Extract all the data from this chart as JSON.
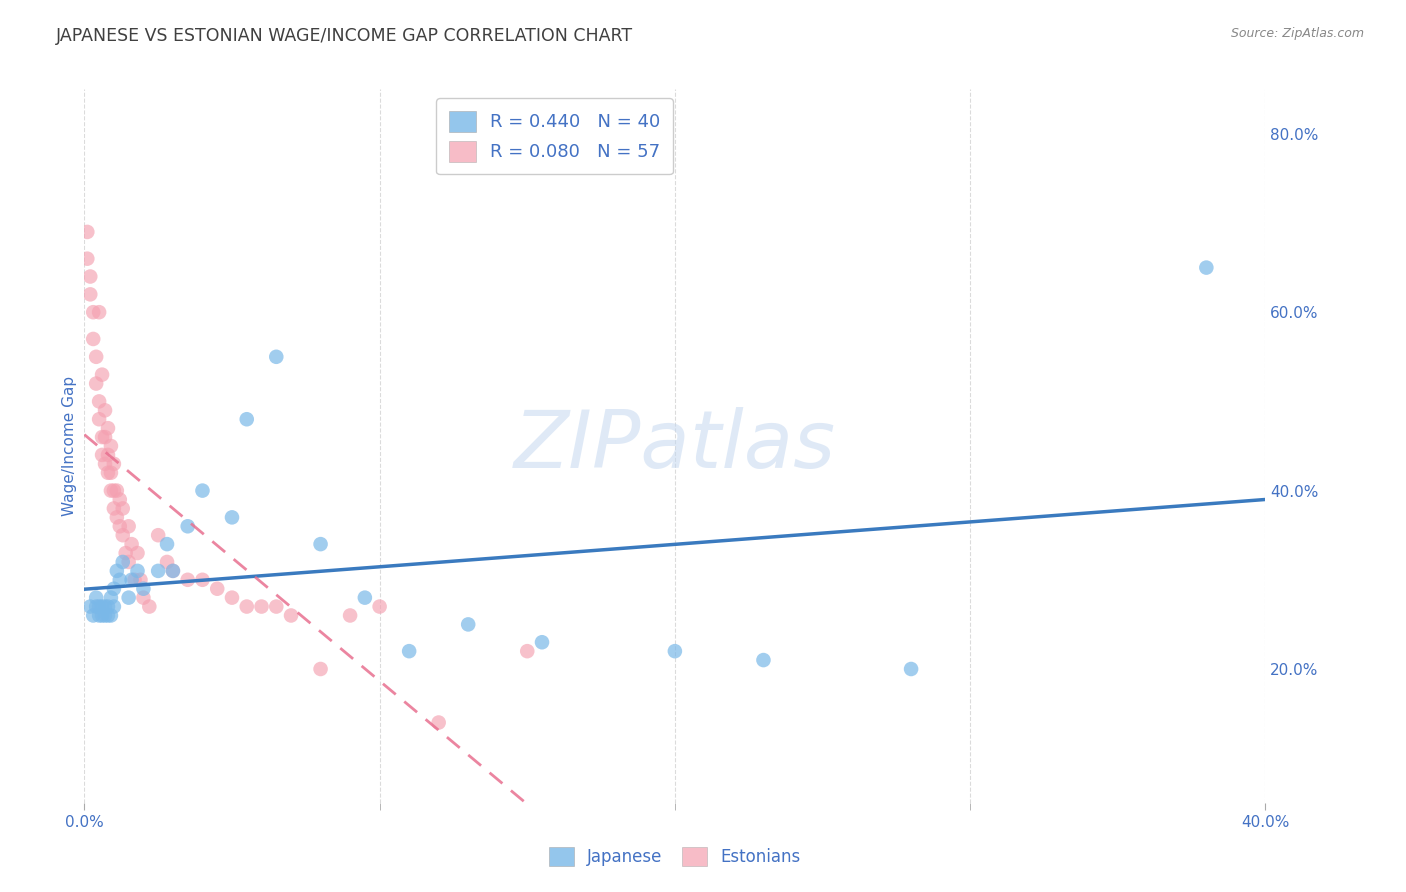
{
  "title": "JAPANESE VS ESTONIAN WAGE/INCOME GAP CORRELATION CHART",
  "source": "Source: ZipAtlas.com",
  "ylabel": "Wage/Income Gap",
  "watermark": "ZIPatlas",
  "right_yticklabels": [
    "20.0%",
    "40.0%",
    "60.0%",
    "80.0%"
  ],
  "right_yticks": [
    0.2,
    0.4,
    0.6,
    0.8
  ],
  "xlim": [
    0.0,
    0.4
  ],
  "ylim": [
    0.05,
    0.85
  ],
  "japanese_R": 0.44,
  "japanese_N": 40,
  "estonian_R": 0.08,
  "estonian_N": 57,
  "japanese_color": "#7ab8e8",
  "estonian_color": "#f4a0b0",
  "japanese_line_color": "#3a7abf",
  "estonian_line_color": "#e87090",
  "background_color": "#ffffff",
  "grid_color": "#cccccc",
  "title_color": "#404040",
  "axis_label_color": "#4472c4",
  "japanese_scatter_x": [
    0.002,
    0.003,
    0.004,
    0.004,
    0.005,
    0.005,
    0.006,
    0.006,
    0.007,
    0.007,
    0.008,
    0.008,
    0.009,
    0.009,
    0.01,
    0.01,
    0.011,
    0.012,
    0.013,
    0.015,
    0.016,
    0.018,
    0.02,
    0.025,
    0.028,
    0.03,
    0.035,
    0.04,
    0.05,
    0.055,
    0.065,
    0.08,
    0.095,
    0.11,
    0.13,
    0.155,
    0.2,
    0.23,
    0.28,
    0.38
  ],
  "japanese_scatter_y": [
    0.27,
    0.26,
    0.27,
    0.28,
    0.26,
    0.27,
    0.27,
    0.26,
    0.26,
    0.27,
    0.26,
    0.27,
    0.26,
    0.28,
    0.27,
    0.29,
    0.31,
    0.3,
    0.32,
    0.28,
    0.3,
    0.31,
    0.29,
    0.31,
    0.34,
    0.31,
    0.36,
    0.4,
    0.37,
    0.48,
    0.55,
    0.34,
    0.28,
    0.22,
    0.25,
    0.23,
    0.22,
    0.21,
    0.2,
    0.65
  ],
  "estonian_scatter_x": [
    0.001,
    0.001,
    0.002,
    0.002,
    0.003,
    0.003,
    0.004,
    0.004,
    0.005,
    0.005,
    0.005,
    0.006,
    0.006,
    0.006,
    0.007,
    0.007,
    0.007,
    0.008,
    0.008,
    0.008,
    0.009,
    0.009,
    0.009,
    0.01,
    0.01,
    0.01,
    0.011,
    0.011,
    0.012,
    0.012,
    0.013,
    0.013,
    0.014,
    0.015,
    0.015,
    0.016,
    0.017,
    0.018,
    0.019,
    0.02,
    0.022,
    0.025,
    0.028,
    0.03,
    0.035,
    0.04,
    0.045,
    0.05,
    0.055,
    0.06,
    0.065,
    0.07,
    0.08,
    0.09,
    0.1,
    0.12,
    0.15
  ],
  "estonian_scatter_y": [
    0.69,
    0.66,
    0.64,
    0.62,
    0.6,
    0.57,
    0.55,
    0.52,
    0.5,
    0.48,
    0.6,
    0.46,
    0.44,
    0.53,
    0.43,
    0.46,
    0.49,
    0.42,
    0.44,
    0.47,
    0.4,
    0.42,
    0.45,
    0.38,
    0.4,
    0.43,
    0.37,
    0.4,
    0.36,
    0.39,
    0.35,
    0.38,
    0.33,
    0.32,
    0.36,
    0.34,
    0.3,
    0.33,
    0.3,
    0.28,
    0.27,
    0.35,
    0.32,
    0.31,
    0.3,
    0.3,
    0.29,
    0.28,
    0.27,
    0.27,
    0.27,
    0.26,
    0.2,
    0.26,
    0.27,
    0.14,
    0.22
  ]
}
